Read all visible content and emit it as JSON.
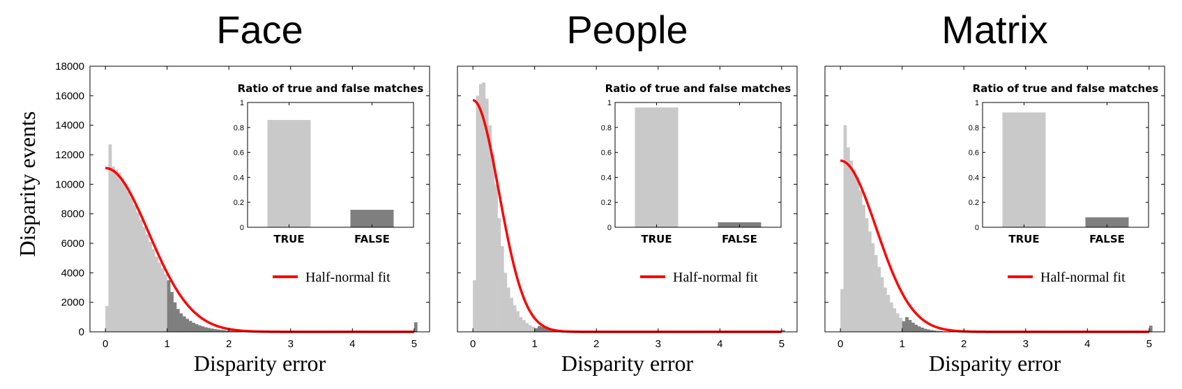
{
  "ylabel": "Disparity events",
  "colors": {
    "true_bar": "#c9c9c9",
    "false_bar": "#7f7f7f",
    "fit_line": "#ff0000",
    "frame": "#000000"
  },
  "chart_data": [
    {
      "type": "bar",
      "title": "Face",
      "xlabel": "Disparity error",
      "xlim": [
        -0.25,
        5.25
      ],
      "ylim": [
        0,
        18000
      ],
      "xticks": [
        0,
        1,
        2,
        3,
        4,
        5
      ],
      "yticks": [
        0,
        2000,
        4000,
        6000,
        8000,
        10000,
        12000,
        14000,
        16000,
        18000
      ],
      "show_yticklabels": true,
      "bin_width": 0.05,
      "true_false_threshold": 1.0,
      "histogram": [
        1750,
        12700,
        11200,
        11000,
        10800,
        10400,
        10000,
        9500,
        9100,
        8600,
        8100,
        7600,
        7100,
        6600,
        6100,
        5600,
        5100,
        4700,
        4300,
        3900,
        3500,
        2700,
        2000,
        1550,
        1250,
        1050,
        880,
        740,
        620,
        520,
        440,
        370,
        310,
        260,
        220,
        185,
        155,
        130,
        110,
        90,
        75,
        60,
        50,
        40,
        33,
        27,
        22,
        18,
        15,
        12,
        10,
        8,
        6,
        5,
        4,
        3,
        3,
        2,
        2,
        1,
        1,
        1,
        1,
        0,
        0,
        0,
        0,
        0,
        0,
        0,
        0,
        0,
        0,
        0,
        0,
        0,
        0,
        0,
        0,
        0,
        0,
        0,
        0,
        0,
        0,
        0,
        0,
        0,
        0,
        0,
        0,
        0,
        0,
        0,
        0,
        0,
        0,
        0,
        0,
        0,
        650
      ],
      "fit": {
        "type": "half-normal",
        "peak": 11100,
        "sigma": 0.7
      },
      "legend": "Half-normal fit",
      "inset": {
        "title": "Ratio of true and false matches",
        "categories": [
          "TRUE",
          "FALSE"
        ],
        "values": [
          0.86,
          0.14
        ],
        "ylim": [
          0,
          1
        ],
        "yticks": [
          0,
          0.2,
          0.4,
          0.6,
          0.8,
          1
        ],
        "ytick_labels": [
          "0",
          "0.2",
          "0.4",
          "0.6",
          "0.8",
          "1"
        ]
      }
    },
    {
      "type": "bar",
      "title": "People",
      "xlabel": "Disparity error",
      "xlim": [
        -0.25,
        5.25
      ],
      "ylim": [
        0,
        18000
      ],
      "xticks": [
        0,
        1,
        2,
        3,
        4,
        5
      ],
      "yticks": [
        0,
        2000,
        4000,
        6000,
        8000,
        10000,
        12000,
        14000,
        16000,
        18000
      ],
      "show_yticklabels": false,
      "bin_width": 0.05,
      "true_false_threshold": 1.0,
      "histogram": [
        3500,
        16000,
        16800,
        16900,
        15800,
        14000,
        12000,
        10000,
        7700,
        5800,
        4000,
        3000,
        2300,
        1800,
        1400,
        1000,
        800,
        600,
        450,
        350,
        250,
        400,
        330,
        260,
        200,
        150,
        110,
        80,
        60,
        45,
        30,
        22,
        15,
        10,
        7,
        5,
        3,
        2,
        1,
        1,
        0,
        0,
        0,
        0,
        0,
        0,
        0,
        0,
        0,
        0,
        0,
        0,
        0,
        0,
        0,
        0,
        0,
        0,
        0,
        0,
        0,
        0,
        0,
        0,
        0,
        0,
        0,
        0,
        0,
        0,
        0,
        0,
        0,
        0,
        0,
        0,
        0,
        0,
        0,
        0,
        0,
        0,
        0,
        0,
        0,
        0,
        0,
        0,
        0,
        0,
        0,
        0,
        0,
        0,
        0,
        0,
        0,
        0,
        0,
        0,
        120
      ],
      "fit": {
        "type": "half-normal",
        "peak": 15700,
        "sigma": 0.42
      },
      "legend": "Half-normal fit",
      "inset": {
        "title": "Ratio of true and false matches",
        "categories": [
          "TRUE",
          "FALSE"
        ],
        "values": [
          0.96,
          0.04
        ],
        "ylim": [
          0,
          1
        ],
        "yticks": [
          0,
          0.2,
          0.4,
          0.6,
          0.8,
          1
        ],
        "ytick_labels": [
          "0",
          "0.2",
          "0.4",
          "0.6",
          "0.8",
          "1"
        ]
      }
    },
    {
      "type": "bar",
      "title": "Matrix",
      "xlabel": "Disparity error",
      "xlim": [
        -0.25,
        5.25
      ],
      "ylim": [
        0,
        18000
      ],
      "xticks": [
        0,
        1,
        2,
        3,
        4,
        5
      ],
      "yticks": [
        0,
        2000,
        4000,
        6000,
        8000,
        10000,
        12000,
        14000,
        16000,
        18000
      ],
      "show_yticklabels": false,
      "bin_width": 0.05,
      "true_false_threshold": 1.0,
      "histogram": [
        2900,
        14000,
        12500,
        11600,
        11000,
        10500,
        9600,
        8600,
        7700,
        6800,
        6000,
        5200,
        4400,
        3700,
        3000,
        2500,
        2000,
        1600,
        1250,
        950,
        720,
        1000,
        800,
        620,
        480,
        370,
        280,
        210,
        160,
        120,
        90,
        65,
        48,
        35,
        25,
        18,
        13,
        9,
        6,
        4,
        3,
        2,
        1,
        1,
        0,
        0,
        0,
        0,
        0,
        0,
        0,
        0,
        0,
        0,
        0,
        0,
        0,
        0,
        0,
        0,
        0,
        0,
        0,
        0,
        0,
        0,
        0,
        0,
        0,
        0,
        0,
        0,
        0,
        0,
        0,
        0,
        0,
        0,
        0,
        0,
        0,
        0,
        0,
        0,
        0,
        0,
        0,
        0,
        0,
        0,
        0,
        0,
        0,
        0,
        0,
        0,
        0,
        0,
        0,
        0,
        420
      ],
      "fit": {
        "type": "half-normal",
        "peak": 11600,
        "sigma": 0.58
      },
      "legend": "Half-normal fit",
      "inset": {
        "title": "Ratio of true and false matches",
        "categories": [
          "TRUE",
          "FALSE"
        ],
        "values": [
          0.92,
          0.08
        ],
        "ylim": [
          0,
          1
        ],
        "yticks": [
          0,
          0.2,
          0.4,
          0.6,
          0.8,
          1
        ],
        "ytick_labels": [
          "0",
          "0.2",
          "0.4",
          "0.6",
          "0.8",
          "1"
        ]
      }
    }
  ]
}
